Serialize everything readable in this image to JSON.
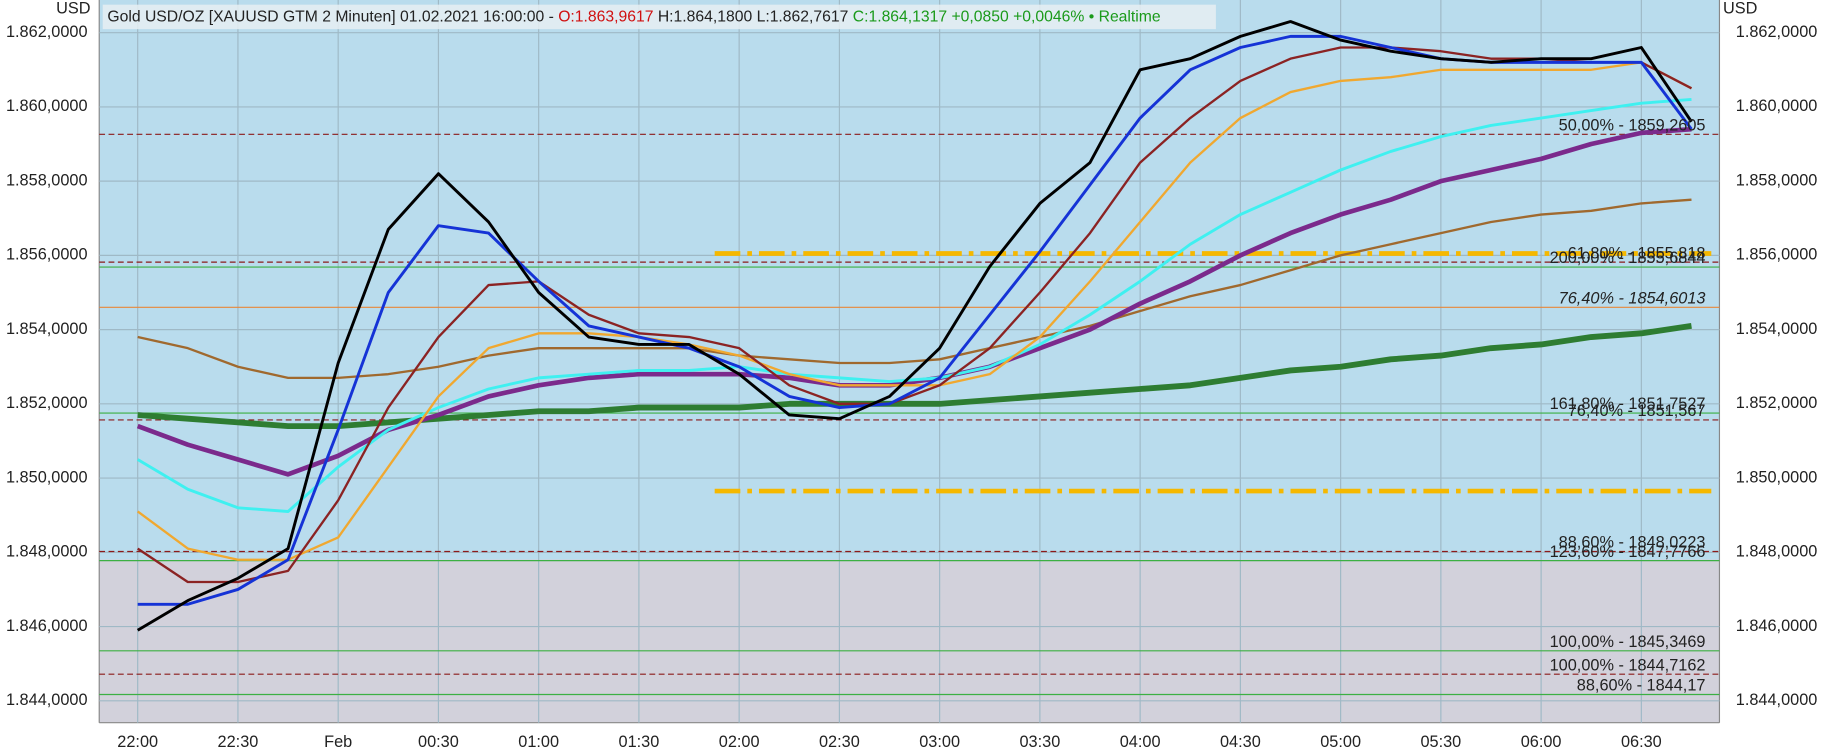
{
  "header": {
    "currency_left": "USD",
    "currency_right": "USD",
    "instrument": "Gold USD/OZ [XAUUSD GTM 2 Minuten] 01.02.2021 16:00:00 - ",
    "open": "O:1.863,9617",
    "high_low": " H:1.864,1800 L:1.862,7617 ",
    "close": "C:1.864,1317 +0,0850 +0,0046% • Realtime"
  },
  "chart_data": {
    "type": "line",
    "categories": [
      "22:00",
      null,
      "22:30",
      null,
      "Feb",
      null,
      "00:30",
      null,
      "01:00",
      null,
      "01:30",
      null,
      "02:00",
      null,
      "02:30",
      null,
      "03:00",
      null,
      "03:30",
      null,
      "04:00",
      null,
      "04:30",
      null,
      "05:00",
      null,
      "05:30",
      null,
      "06:00",
      null,
      "06:30",
      null
    ],
    "series": [
      {
        "color": "#2e7d32",
        "width": 5,
        "values": [
          1851.7,
          1851.6,
          1851.5,
          1851.4,
          1851.4,
          1851.5,
          1851.6,
          1851.7,
          1851.8,
          1851.8,
          1851.9,
          1851.9,
          1851.9,
          1852.0,
          1852.0,
          1852.0,
          1852.0,
          1852.1,
          1852.2,
          1852.3,
          1852.4,
          1852.5,
          1852.7,
          1852.9,
          1853.0,
          1853.2,
          1853.3,
          1853.5,
          1853.6,
          1853.8,
          1853.9,
          1854.1
        ]
      },
      {
        "color": "#a0692e",
        "width": 2,
        "values": [
          1853.8,
          1853.5,
          1853.0,
          1852.7,
          1852.7,
          1852.8,
          1853.0,
          1853.3,
          1853.5,
          1853.5,
          1853.5,
          1853.5,
          1853.3,
          1853.2,
          1853.1,
          1853.1,
          1853.2,
          1853.5,
          1853.8,
          1854.1,
          1854.5,
          1854.9,
          1855.2,
          1855.6,
          1856.0,
          1856.3,
          1856.6,
          1856.9,
          1857.1,
          1857.2,
          1857.4,
          1857.5
        ]
      },
      {
        "color": "#7b2a8c",
        "width": 4,
        "values": [
          1851.4,
          1850.9,
          1850.5,
          1850.1,
          1850.6,
          1851.3,
          1851.7,
          1852.2,
          1852.5,
          1852.7,
          1852.8,
          1852.8,
          1852.8,
          1852.7,
          1852.5,
          1852.5,
          1852.7,
          1853.0,
          1853.5,
          1854.0,
          1854.7,
          1855.3,
          1856.0,
          1856.6,
          1857.1,
          1857.5,
          1858.0,
          1858.3,
          1858.6,
          1859.0,
          1859.3,
          1859.4
        ]
      },
      {
        "color": "#3ff0f0",
        "width": 2.5,
        "values": [
          1850.5,
          1849.7,
          1849.2,
          1849.1,
          1850.3,
          1851.3,
          1851.9,
          1852.4,
          1852.7,
          1852.8,
          1852.9,
          1852.9,
          1853.0,
          1852.8,
          1852.7,
          1852.6,
          1852.7,
          1853.0,
          1853.6,
          1854.4,
          1855.3,
          1856.3,
          1857.1,
          1857.7,
          1858.3,
          1858.8,
          1859.2,
          1859.5,
          1859.7,
          1859.9,
          1860.1,
          1860.2
        ]
      },
      {
        "color": "#f0a830",
        "width": 2,
        "values": [
          1849.1,
          1848.1,
          1847.8,
          1847.8,
          1848.4,
          1850.3,
          1852.2,
          1853.5,
          1853.9,
          1853.9,
          1853.8,
          1853.6,
          1853.3,
          1852.8,
          1852.5,
          1852.5,
          1852.5,
          1852.8,
          1853.8,
          1855.3,
          1856.9,
          1858.5,
          1859.7,
          1860.4,
          1860.7,
          1860.8,
          1861.0,
          1861.0,
          1861.0,
          1861.0,
          1861.2,
          1860.5
        ]
      },
      {
        "color": "#8b2323",
        "width": 2,
        "values": [
          1848.1,
          1847.2,
          1847.2,
          1847.5,
          1849.4,
          1851.9,
          1853.8,
          1855.2,
          1855.3,
          1854.4,
          1853.9,
          1853.8,
          1853.5,
          1852.5,
          1852.0,
          1852.0,
          1852.5,
          1853.5,
          1855.0,
          1856.6,
          1858.5,
          1859.7,
          1860.7,
          1861.3,
          1861.6,
          1861.6,
          1861.5,
          1861.3,
          1861.3,
          1861.2,
          1861.2,
          1860.5
        ]
      },
      {
        "color": "#1533d6",
        "width": 2.5,
        "values": [
          1846.6,
          1846.6,
          1847.0,
          1847.8,
          1851.3,
          1855.0,
          1856.8,
          1856.6,
          1855.3,
          1854.1,
          1853.8,
          1853.5,
          1853.0,
          1852.2,
          1851.9,
          1852.0,
          1852.7,
          1854.4,
          1856.1,
          1857.9,
          1859.7,
          1861.0,
          1861.6,
          1861.9,
          1861.9,
          1861.6,
          1861.3,
          1861.2,
          1861.2,
          1861.2,
          1861.2,
          1859.4
        ]
      },
      {
        "color": "#000000",
        "width": 2.5,
        "values": [
          1845.9,
          1846.7,
          1847.3,
          1848.1,
          1853.1,
          1856.7,
          1858.2,
          1856.9,
          1855.0,
          1853.8,
          1853.6,
          1853.6,
          1852.8,
          1851.7,
          1851.6,
          1852.2,
          1853.5,
          1855.7,
          1857.4,
          1858.5,
          1861.0,
          1861.3,
          1861.9,
          1862.3,
          1861.8,
          1861.5,
          1861.3,
          1861.2,
          1861.3,
          1861.3,
          1861.6,
          1859.6
        ]
      }
    ],
    "ylim": [
      1843.41,
      1862.88
    ],
    "yticks": [
      {
        "value": 1844,
        "label": "1.844,0000"
      },
      {
        "value": 1846,
        "label": "1.846,0000"
      },
      {
        "value": 1848,
        "label": "1.848,0000"
      },
      {
        "value": 1850,
        "label": "1.850,0000"
      },
      {
        "value": 1852,
        "label": "1.852,0000"
      },
      {
        "value": 1854,
        "label": "1.854,0000"
      },
      {
        "value": 1856,
        "label": "1.856,0000"
      },
      {
        "value": 1858,
        "label": "1.858,0000"
      },
      {
        "value": 1860,
        "label": "1.860,0000"
      },
      {
        "value": 1862,
        "label": "1.862,0000"
      }
    ],
    "grid": true,
    "range_lines": {
      "color": "#f5b800",
      "values": [
        1856.05,
        1849.65
      ]
    },
    "levels": [
      {
        "label": "50,00% - 1859,2605",
        "value": 1859.2605,
        "color": "#8b1a1a",
        "dashed": true
      },
      {
        "label": "61,80% - 1855,818",
        "value": 1855.818,
        "color": "#8b1a1a",
        "dashed": true
      },
      {
        "label": "200,00% - 1855,6844",
        "value": 1855.6844,
        "color": "#3cb043",
        "dashed": false
      },
      {
        "label": "76,40% - 1854,6013",
        "value": 1854.6013,
        "color": "#e8873a",
        "dashed": false
      },
      {
        "label": "161,80% - 1851,7527",
        "value": 1851.7527,
        "color": "#3cb043",
        "dashed": false
      },
      {
        "label": "76,40% - 1851,567",
        "value": 1851.567,
        "color": "#8b1a1a",
        "dashed": true
      },
      {
        "label": "88,60% - 1848,0223",
        "value": 1848.0223,
        "color": "#8b1a1a",
        "dashed": true
      },
      {
        "label": "123,60% - 1847,7766",
        "value": 1847.7766,
        "color": "#3cb043",
        "dashed": false
      },
      {
        "label": "100,00% - 1845,3469",
        "value": 1845.3469,
        "color": "#3cb043",
        "dashed": false
      },
      {
        "label": "100,00% - 1844,7162",
        "value": 1844.7162,
        "color": "#8b1a1a",
        "dashed": true
      },
      {
        "label": "88,60% - 1844,17",
        "value": 1844.17,
        "color": "#3cb043",
        "dashed": false
      }
    ]
  }
}
